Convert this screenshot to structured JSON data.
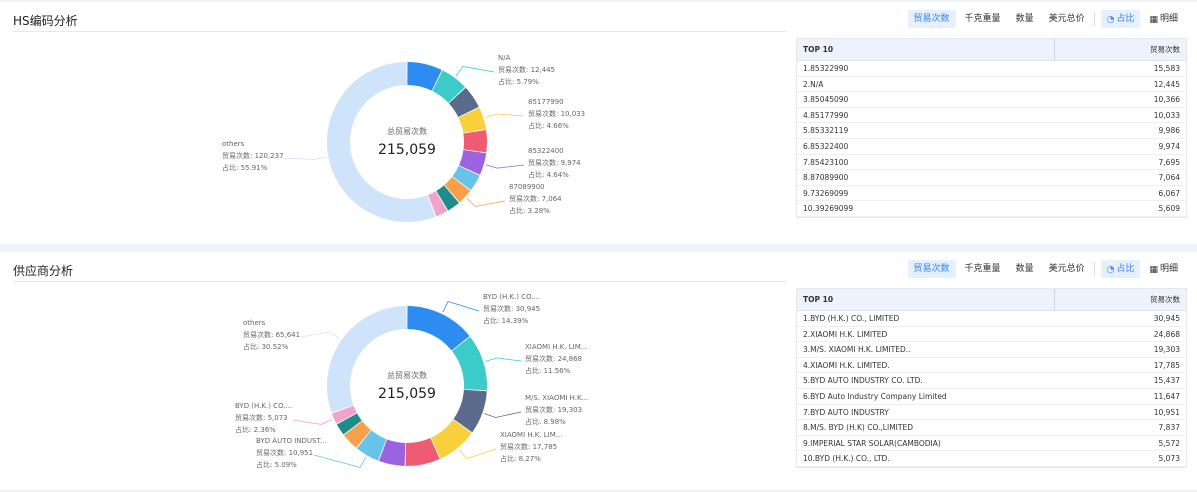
{
  "toolbar": {
    "trade_count": "贸易次数",
    "weight": "千克重量",
    "quantity": "数量",
    "usd_total": "美元总价",
    "ratio": "占比",
    "detail": "明细"
  },
  "hs_section": {
    "title": "HS编码分析",
    "center_label": "总贸易次数",
    "center_value": "215,059",
    "table_header_left": "TOP 10",
    "table_header_right": "贸易次数",
    "rows": [
      {
        "name": "1.85322990",
        "value": "15,583"
      },
      {
        "name": "2.N/A",
        "value": "12,445"
      },
      {
        "name": "3.85045090",
        "value": "10,366"
      },
      {
        "name": "4.85177990",
        "value": "10,033"
      },
      {
        "name": "5.85332119",
        "value": "9,986"
      },
      {
        "name": "6.85322400",
        "value": "9,974"
      },
      {
        "name": "7.85423100",
        "value": "7,695"
      },
      {
        "name": "8.87089900",
        "value": "7,064"
      },
      {
        "name": "9.73269099",
        "value": "6,067"
      },
      {
        "name": "10.39269099",
        "value": "5,609"
      }
    ]
  },
  "supplier_section": {
    "title": "供应商分析",
    "center_label": "总贸易次数",
    "center_value": "215,059",
    "table_header_left": "TOP 10",
    "table_header_right": "贸易次数",
    "rows": [
      {
        "name": "1.BYD (H.K.) CO., LIMITED",
        "value": "30,945"
      },
      {
        "name": "2.XIAOMI H.K. LIMITED",
        "value": "24,868"
      },
      {
        "name": "3.M/S. XIAOMI H.K. LIMITED..",
        "value": "19,303"
      },
      {
        "name": "4.XIAOMI H.K. LIMITED.",
        "value": "17,785"
      },
      {
        "name": "5.BYD AUTO INDUSTRY CO. LTD.",
        "value": "15,437"
      },
      {
        "name": "6.BYD Auto Industry Company Limited",
        "value": "11,647"
      },
      {
        "name": "7.BYD AUTO INDUSTRY",
        "value": "10,951"
      },
      {
        "name": "8.M/S. BYD (H.K) CO.,LIMITED",
        "value": "7,837"
      },
      {
        "name": "9.IMPERIAL STAR SOLAR(CAMBODIA)",
        "value": "5,572"
      },
      {
        "name": "10.BYD (H.K.) CO., LTD.",
        "value": "5,073"
      }
    ]
  },
  "chart_data": [
    {
      "type": "pie",
      "title": "HS编码分析",
      "total": 215059,
      "categories": [
        "85322990",
        "N/A",
        "85045090",
        "85177990",
        "85332119",
        "85322400",
        "85423100",
        "87089900",
        "73269099",
        "39269099",
        "others"
      ],
      "values": [
        15583,
        12445,
        10366,
        10033,
        9986,
        9974,
        7695,
        7064,
        6067,
        5609,
        120237
      ],
      "colors": [
        "#2d8cf0",
        "#3ccbc9",
        "#5a6b8c",
        "#f9cf3c",
        "#ef5b73",
        "#9b63e0",
        "#67c3ea",
        "#f8a04c",
        "#1f8c8c",
        "#f3a2c9",
        "#cfe3fb"
      ],
      "labels": [
        {
          "name": "N/A",
          "count": "贸易次数: 12,445",
          "ratio": "占比: 5.79%"
        },
        {
          "name": "85177990",
          "count": "贸易次数: 10,033",
          "ratio": "占比: 4.66%"
        },
        {
          "name": "85322400",
          "count": "贸易次数: 9,974",
          "ratio": "占比: 4.64%"
        },
        {
          "name": "87089900",
          "count": "贸易次数: 7,064",
          "ratio": "占比: 3.28%"
        },
        {
          "name": "others",
          "count": "贸易次数: 120,237",
          "ratio": "占比: 55.91%"
        }
      ]
    },
    {
      "type": "pie",
      "title": "供应商分析",
      "total": 215059,
      "categories": [
        "BYD (H.K.) CO., LIMITED",
        "XIAOMI H.K. LIMITED",
        "M/S. XIAOMI H.K. LIMITED..",
        "XIAOMI H.K. LIMITED.",
        "BYD AUTO INDUSTRY CO. LTD.",
        "BYD Auto Industry Company Limited",
        "BYD AUTO INDUSTRY",
        "M/S. BYD (H.K) CO.,LIMITED",
        "IMPERIAL STAR SOLAR(CAMBODIA)",
        "BYD (H.K.) CO., LTD.",
        "others"
      ],
      "values": [
        30945,
        24868,
        19303,
        17785,
        15437,
        11647,
        10951,
        7837,
        5572,
        5073,
        65641
      ],
      "colors": [
        "#2d8cf0",
        "#3ccbc9",
        "#5a6b8c",
        "#f9cf3c",
        "#ef5b73",
        "#9b63e0",
        "#67c3ea",
        "#f8a04c",
        "#1f8c8c",
        "#f3a2c9",
        "#cfe3fb"
      ],
      "labels": [
        {
          "name": "BYD (H.K.) CO....",
          "count": "贸易次数: 30,945",
          "ratio": "占比: 14.39%"
        },
        {
          "name": "XIAOMI H.K. LIM...",
          "count": "贸易次数: 24,868",
          "ratio": "占比: 11.56%"
        },
        {
          "name": "M/S. XIAOMI H.K...",
          "count": "贸易次数: 19,303",
          "ratio": "占比: 8.98%"
        },
        {
          "name": "XIAOMI H.K. LIM...",
          "count": "贸易次数: 17,785",
          "ratio": "占比: 8.27%"
        },
        {
          "name": "BYD AUTO INDUST...",
          "count": "贸易次数: 10,951",
          "ratio": "占比: 5.09%"
        },
        {
          "name": "BYD (H.K.) CO....",
          "count": "贸易次数: 5,073",
          "ratio": "占比: 2.36%"
        },
        {
          "name": "others",
          "count": "贸易次数: 65,641",
          "ratio": "占比: 30.52%"
        }
      ]
    }
  ]
}
